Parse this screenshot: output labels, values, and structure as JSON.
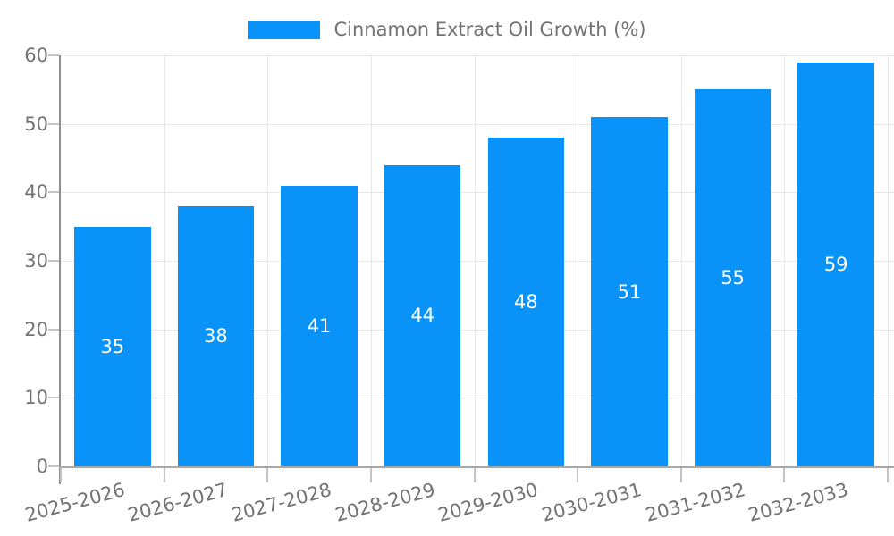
{
  "legend": {
    "label": "Cinnamon Extract Oil Growth (%)"
  },
  "chart_data": {
    "type": "bar",
    "title": "Cinnamon Extract Oil Growth (%)",
    "categories": [
      "2025-2026",
      "2026-2027",
      "2027-2028",
      "2028-2029",
      "2029-2030",
      "2030-2031",
      "2031-2032",
      "2032-2033"
    ],
    "values": [
      35,
      38,
      41,
      44,
      48,
      51,
      55,
      59
    ],
    "xlabel": "",
    "ylabel": "",
    "ylim": [
      0,
      60
    ],
    "yticks": [
      0,
      10,
      20,
      30,
      40,
      50,
      60
    ],
    "grid": true,
    "legend_position": "top-center",
    "value_label_position": "inside-center"
  },
  "colors": {
    "bar": "#0992f8",
    "grid": "#e7e7e7",
    "axis_line": "#a9a9a9",
    "tick_label_text": "#737373",
    "value_label_text": "#ffffff",
    "background": "#ffffff"
  }
}
